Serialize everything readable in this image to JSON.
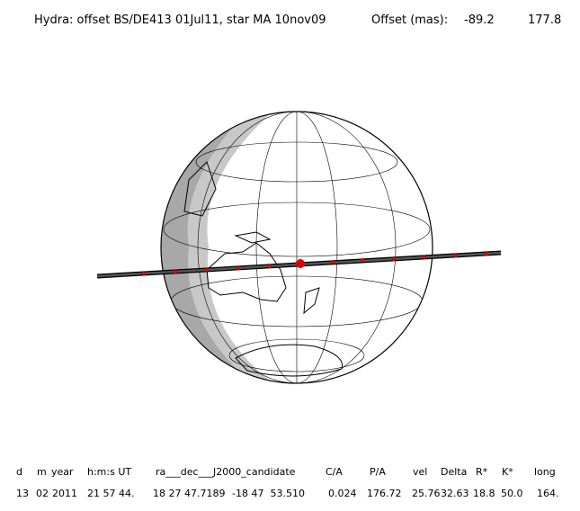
{
  "header": {
    "title": "Hydra: offset BS/DE413 01Jul11, star MA 10nov09",
    "offset_label": "Offset (mas):",
    "offset_ra": "-89.2",
    "offset_dec": "177.8"
  },
  "table": {
    "columns": [
      "d",
      "m",
      "year",
      "h:m:s UT",
      "ra___dec___J2000_candidate",
      "C/A",
      "P/A",
      "vel",
      "Delta",
      "R*",
      "K*",
      "long"
    ],
    "rows": [
      [
        "13",
        "02",
        "2011",
        "21 57 44.",
        "18 27 47.7189",
        "-18 47  53.510",
        "0.024",
        "176.72",
        "25.76",
        "32.63",
        "18.8",
        "50.0",
        "164."
      ]
    ]
  }
}
